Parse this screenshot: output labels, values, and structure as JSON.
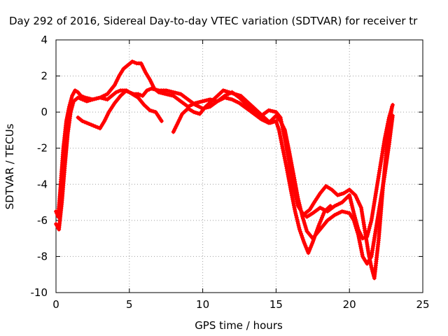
{
  "chart_data": {
    "type": "scatter",
    "title": "Day 292 of 2016, Sidereal Day-to-day VTEC variation (SDTVAR) for receiver tr",
    "xlabel": "GPS time / hours",
    "ylabel": "SDTVAR / TECUs",
    "xlim": [
      0,
      25
    ],
    "ylim": [
      -10,
      4
    ],
    "x_ticks": [
      0,
      5,
      10,
      15,
      20,
      25
    ],
    "y_ticks": [
      -10,
      -8,
      -6,
      -4,
      -2,
      0,
      2,
      4
    ],
    "x_tick_labels": [
      "0",
      "5",
      "10",
      "15",
      "20",
      "25"
    ],
    "y_tick_labels": [
      "-10",
      "-8",
      "-6",
      "-4",
      "-2",
      "0",
      "2",
      "4"
    ],
    "grid": true,
    "legend": "none",
    "marker": "plus",
    "color": "#ff0000",
    "series": [
      {
        "x": [
          0.0,
          0.15,
          0.3,
          0.5,
          0.7,
          0.9,
          1.1,
          1.3,
          1.5,
          1.7,
          2.0,
          2.5,
          3.0,
          3.5,
          4.0,
          4.3,
          4.6,
          4.9,
          5.2,
          5.5,
          5.8,
          6.1,
          6.4,
          6.7,
          7.0,
          7.5,
          8.0,
          8.5,
          9.0,
          9.5,
          10.0,
          10.5,
          11.0,
          11.5,
          12.0,
          12.5,
          13.0,
          13.5,
          14.0,
          14.5,
          15.0,
          15.3,
          15.6,
          15.9,
          16.2,
          16.5,
          16.8,
          17.1,
          17.5,
          18.0,
          18.5,
          19.0,
          19.5,
          20.0,
          20.3,
          20.6,
          20.9,
          21.2,
          21.5,
          21.8,
          22.1,
          22.4,
          22.7,
          22.95
        ],
        "y": [
          -5.5,
          -5.8,
          -4.2,
          -2.0,
          -0.5,
          0.3,
          0.9,
          1.2,
          1.1,
          0.9,
          0.8,
          0.7,
          0.8,
          1.0,
          1.5,
          2.0,
          2.4,
          2.6,
          2.8,
          2.7,
          2.7,
          2.2,
          1.8,
          1.3,
          1.1,
          1.0,
          0.9,
          0.6,
          0.3,
          0.5,
          0.6,
          0.7,
          0.6,
          0.9,
          1.1,
          0.8,
          0.4,
          0.1,
          -0.2,
          0.1,
          0.0,
          -0.3,
          -1.5,
          -2.8,
          -4.2,
          -5.2,
          -5.6,
          -5.8,
          -5.6,
          -5.3,
          -5.5,
          -5.2,
          -5.0,
          -4.6,
          -5.6,
          -6.5,
          -7.0,
          -6.9,
          -6.0,
          -4.5,
          -3.0,
          -1.5,
          -0.3,
          0.4
        ]
      },
      {
        "x": [
          0.0,
          0.2,
          0.4,
          0.6,
          0.8,
          1.0,
          1.2,
          1.5,
          1.8,
          2.1,
          2.5,
          3.0,
          3.5,
          3.8,
          4.1,
          4.4,
          4.7,
          5.0,
          5.3,
          5.6,
          5.9,
          6.2,
          6.5,
          7.0,
          7.5,
          8.0,
          8.5,
          9.0,
          9.5,
          10.0,
          10.5,
          11.0,
          11.5,
          12.0,
          12.5,
          13.0,
          13.5,
          14.0,
          14.5,
          15.0,
          15.3,
          15.6,
          15.9,
          16.2,
          16.5,
          16.8,
          17.1,
          17.5,
          18.0,
          18.5,
          19.0,
          19.5,
          20.0,
          20.3,
          20.6,
          20.9,
          21.2,
          21.5,
          21.8,
          22.1,
          22.4,
          22.7,
          22.95
        ],
        "y": [
          -6.2,
          -6.5,
          -5.0,
          -3.0,
          -1.2,
          0.0,
          0.6,
          0.8,
          0.7,
          0.6,
          0.7,
          0.8,
          0.7,
          0.9,
          1.1,
          1.2,
          1.2,
          1.1,
          1.0,
          1.0,
          0.9,
          1.2,
          1.3,
          1.2,
          1.2,
          1.1,
          1.0,
          0.7,
          0.4,
          0.2,
          0.3,
          0.6,
          0.8,
          0.7,
          0.5,
          0.2,
          -0.1,
          -0.4,
          -0.6,
          -0.2,
          -0.5,
          -1.0,
          -2.2,
          -3.5,
          -4.8,
          -5.8,
          -6.6,
          -7.0,
          -6.5,
          -6.0,
          -5.7,
          -5.5,
          -5.6,
          -6.0,
          -6.8,
          -8.0,
          -8.4,
          -8.0,
          -6.5,
          -5.0,
          -3.5,
          -1.8,
          -0.2
        ]
      },
      {
        "x": [
          1.5,
          1.8,
          2.1,
          2.4,
          2.7,
          3.0,
          3.3,
          3.6,
          4.0,
          4.4,
          4.8,
          5.2,
          5.6,
          6.0,
          6.4,
          6.8,
          7.2
        ],
        "y": [
          -0.3,
          -0.5,
          -0.6,
          -0.7,
          -0.8,
          -0.9,
          -0.5,
          0.0,
          0.5,
          0.9,
          1.2,
          1.0,
          0.8,
          0.4,
          0.1,
          0.0,
          -0.5
        ]
      },
      {
        "x": [
          8.0,
          8.3,
          8.6,
          9.0,
          9.4,
          9.8,
          10.2,
          10.6,
          11.0,
          11.4,
          11.8,
          12.2,
          12.6,
          13.0,
          13.4,
          13.8,
          14.2,
          14.6,
          15.0,
          15.2,
          15.4,
          15.7,
          16.0,
          16.3,
          16.6,
          16.9,
          17.2,
          17.5,
          17.9,
          18.3,
          18.7
        ],
        "y": [
          -1.1,
          -0.6,
          -0.1,
          0.2,
          0.0,
          -0.1,
          0.3,
          0.6,
          0.9,
          1.2,
          1.1,
          1.0,
          0.9,
          0.6,
          0.3,
          0.0,
          -0.3,
          -0.6,
          -0.5,
          -1.0,
          -1.8,
          -3.0,
          -4.3,
          -5.5,
          -6.5,
          -7.2,
          -7.8,
          -7.2,
          -6.3,
          -5.5,
          -5.2
        ]
      },
      {
        "x": [
          17.0,
          17.3,
          17.6,
          18.0,
          18.4,
          18.8,
          19.2,
          19.6,
          20.0,
          20.4,
          20.8,
          21.1,
          21.3,
          21.5,
          21.7,
          22.0,
          22.3,
          22.6,
          22.9
        ],
        "y": [
          -5.6,
          -5.4,
          -5.0,
          -4.5,
          -4.1,
          -4.3,
          -4.6,
          -4.5,
          -4.3,
          -4.6,
          -5.3,
          -6.8,
          -7.8,
          -8.6,
          -9.2,
          -7.0,
          -4.0,
          -1.5,
          0.3
        ]
      }
    ]
  }
}
